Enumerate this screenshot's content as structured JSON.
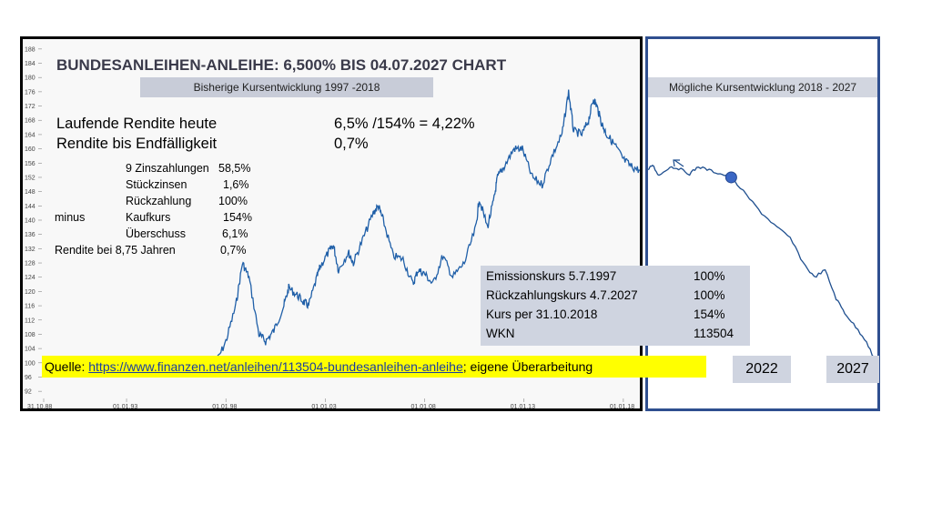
{
  "title": "BUNDESANLEIHEN-ANLEIHE: 6,500% BIS 04.07.2027 CHART",
  "subtitle_past": "Bisherige Kursentwicklung 1997 -2018",
  "subtitle_future": "Mögliche Kursentwicklung 2018 - 2027",
  "yield": {
    "line1_label": "Laufende Rendite heute",
    "line1_value": "6,5% /154% = 4,22%",
    "line2_label": "Rendite bis Endfälligkeit",
    "line2_value": "0,7%"
  },
  "calc": {
    "r1_label": "9 Zinszahlungen",
    "r1_value": "58,5%",
    "r2_label": "Stückzinsen",
    "r2_value": "1,6%",
    "r3_label": "Rückzahlung",
    "r3_value": "100%",
    "r4_prefix": "minus",
    "r4_label": "Kaufkurs",
    "r4_value": "154%",
    "r5_label": "Überschuss",
    "r5_value": "6,1%",
    "r6_label": "Rendite bei 8,75 Jahren",
    "r6_value": "0,7%"
  },
  "infobox": {
    "r1_label": "Emissionskurs 5.7.1997",
    "r1_value": "100%",
    "r2_label": "Rückzahlungskurs 4.7.2027",
    "r2_value": "100%",
    "r3_label": "Kurs per 31.10.2018",
    "r3_value": "154%",
    "r4_label": "WKN",
    "r4_value": "113504"
  },
  "source": {
    "prefix": "Quelle: ",
    "link": "https://www.finanzen.net/anleihen/113504-bundesanleihen-anleihe",
    "suffix": ";  eigene Überarbeitung"
  },
  "year_labels": {
    "a": "2022",
    "b": "2027"
  },
  "colors": {
    "line": "#1f5fa8",
    "future_line": "#1f4f8f",
    "highlight": "#ffff00",
    "box": "#cfd4e0"
  },
  "chart_data": [
    {
      "type": "line",
      "name": "historical",
      "x_tick_labels": [
        "31.10.88",
        "01.01.93",
        "01.01.98",
        "01.01.03",
        "01.01.08",
        "01.01.13",
        "01.01.18"
      ],
      "x_ticks": [
        "1988-10-31",
        "1993-01-01",
        "1998-01-01",
        "2003-01-01",
        "2008-01-01",
        "2013-01-01",
        "2018-01-01"
      ],
      "x_range": [
        "1988-10-31",
        "2018-10-31"
      ],
      "y_ticks": [
        92,
        96,
        100,
        104,
        108,
        112,
        116,
        120,
        124,
        128,
        132,
        136,
        140,
        144,
        148,
        152,
        156,
        160,
        164,
        168,
        172,
        176,
        180,
        184,
        188
      ],
      "ylim": [
        90,
        190
      ],
      "grid": false,
      "points": [
        [
          "1997-07-05",
          100
        ],
        [
          "1998-01-01",
          106
        ],
        [
          "1998-07-01",
          116
        ],
        [
          "1998-11-01",
          128
        ],
        [
          "1999-03-01",
          124
        ],
        [
          "1999-09-01",
          108
        ],
        [
          "2000-01-01",
          106
        ],
        [
          "2000-06-01",
          109
        ],
        [
          "2000-12-01",
          116
        ],
        [
          "2001-03-01",
          121
        ],
        [
          "2001-08-01",
          119
        ],
        [
          "2001-12-01",
          117
        ],
        [
          "2002-03-01",
          116
        ],
        [
          "2002-08-01",
          124
        ],
        [
          "2002-10-01",
          127
        ],
        [
          "2003-03-01",
          131
        ],
        [
          "2003-06-01",
          133
        ],
        [
          "2003-09-01",
          126
        ],
        [
          "2004-03-01",
          131
        ],
        [
          "2004-06-01",
          128
        ],
        [
          "2004-12-01",
          135
        ],
        [
          "2005-06-01",
          142
        ],
        [
          "2005-09-01",
          144
        ],
        [
          "2005-12-01",
          140
        ],
        [
          "2006-06-01",
          130
        ],
        [
          "2006-12-01",
          129
        ],
        [
          "2007-06-01",
          122
        ],
        [
          "2007-09-01",
          126
        ],
        [
          "2008-01-01",
          125
        ],
        [
          "2008-06-01",
          122
        ],
        [
          "2008-12-01",
          130
        ],
        [
          "2009-06-01",
          124
        ],
        [
          "2010-01-01",
          128
        ],
        [
          "2010-08-01",
          138
        ],
        [
          "2010-10-01",
          146
        ],
        [
          "2011-03-01",
          138
        ],
        [
          "2011-07-01",
          146
        ],
        [
          "2011-09-01",
          152
        ],
        [
          "2012-01-01",
          155
        ],
        [
          "2012-07-01",
          160
        ],
        [
          "2012-12-01",
          160
        ],
        [
          "2013-06-01",
          152
        ],
        [
          "2013-12-01",
          150
        ],
        [
          "2014-06-01",
          158
        ],
        [
          "2014-12-01",
          164
        ],
        [
          "2015-04-01",
          176
        ],
        [
          "2015-07-01",
          165
        ],
        [
          "2015-12-01",
          164
        ],
        [
          "2016-04-01",
          168
        ],
        [
          "2016-07-01",
          174
        ],
        [
          "2016-09-01",
          172
        ],
        [
          "2016-12-01",
          167
        ],
        [
          "2017-03-01",
          164
        ],
        [
          "2017-08-01",
          161
        ],
        [
          "2018-01-01",
          157
        ],
        [
          "2018-06-01",
          155
        ],
        [
          "2018-10-31",
          154
        ]
      ]
    },
    {
      "type": "line",
      "name": "projection",
      "x_tick_labels": [
        "2022",
        "2027"
      ],
      "x_range": [
        "2018-10-31",
        "2027-07-04"
      ],
      "ylim": [
        90,
        190
      ],
      "marker": {
        "x": "2022-01-01",
        "y": 152
      },
      "points": [
        [
          "2018-10-31",
          154
        ],
        [
          "2019-01-01",
          155.5
        ],
        [
          "2019-04-01",
          152.5
        ],
        [
          "2019-09-01",
          155
        ],
        [
          "2020-01-01",
          154.5
        ],
        [
          "2020-06-01",
          153
        ],
        [
          "2020-10-01",
          155
        ],
        [
          "2021-03-01",
          154
        ],
        [
          "2021-08-01",
          153
        ],
        [
          "2022-01-01",
          152
        ],
        [
          "2022-08-01",
          147
        ],
        [
          "2023-03-01",
          142
        ],
        [
          "2023-10-01",
          138
        ],
        [
          "2024-04-01",
          135
        ],
        [
          "2024-10-01",
          128
        ],
        [
          "2025-03-01",
          124
        ],
        [
          "2025-08-01",
          126
        ],
        [
          "2026-01-01",
          118
        ],
        [
          "2026-05-01",
          114
        ],
        [
          "2026-10-01",
          110
        ],
        [
          "2027-03-01",
          106
        ],
        [
          "2027-07-04",
          100
        ]
      ]
    }
  ]
}
